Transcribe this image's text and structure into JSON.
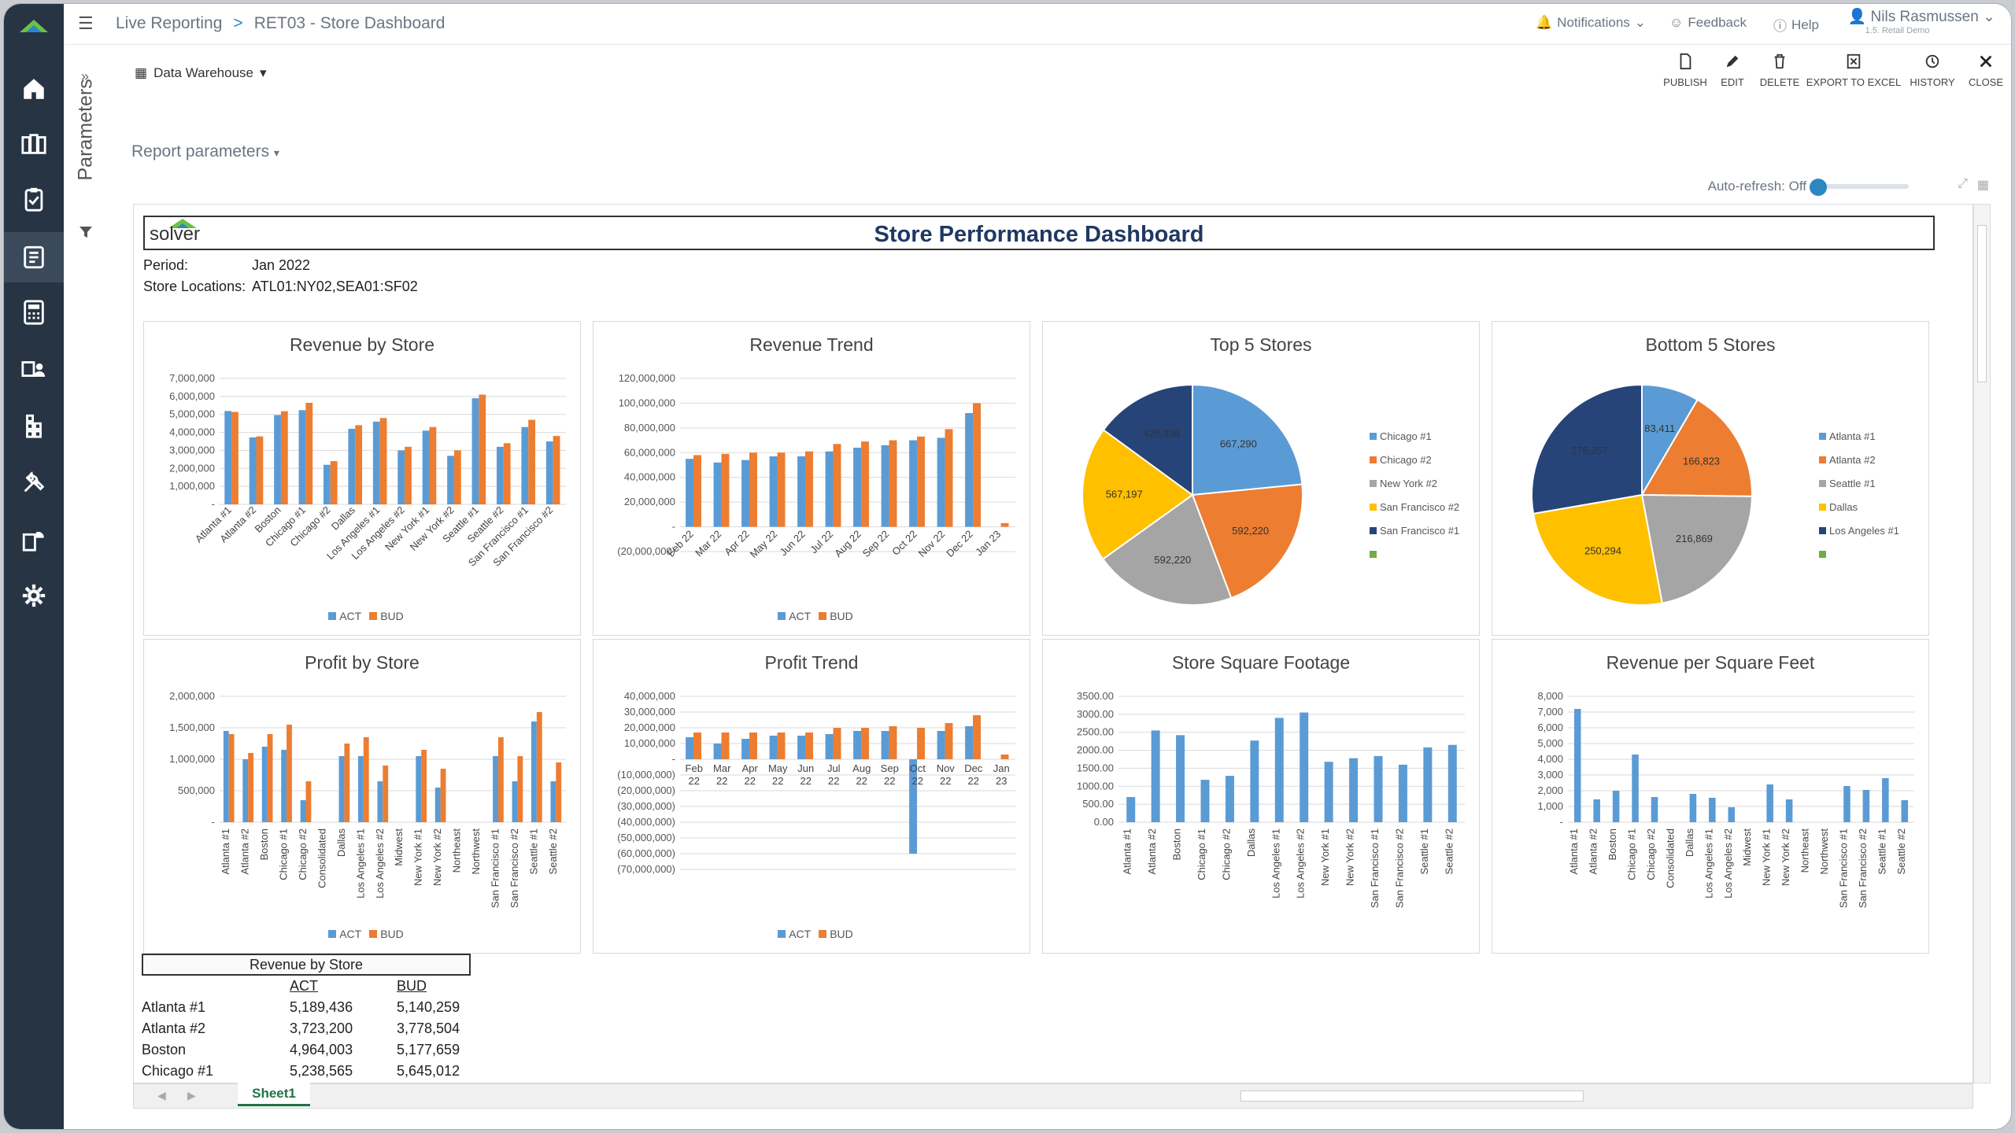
{
  "topbar": {
    "menu_icon": "hamburger-icon",
    "crumb1": "Live Reporting",
    "sep": ">",
    "crumb2": "RET03 - Store Dashboard",
    "notifications": "Notifications",
    "feedback": "Feedback",
    "help": "Help",
    "user": "Nils Rasmussen",
    "user_sub": "1.5. Retail Demo"
  },
  "sidebar": {
    "items": [
      "home-icon",
      "reports-icon",
      "clipboard-icon",
      "live-report-icon",
      "calculator-icon",
      "user-files-icon",
      "modules-icon",
      "tools-icon",
      "data-icon",
      "settings-icon"
    ]
  },
  "params": {
    "label": "Parameters",
    "report_parameters": "Report parameters"
  },
  "source": {
    "label": "Data Warehouse"
  },
  "toolbar": {
    "publish": "PUBLISH",
    "edit": "EDIT",
    "delete": "DELETE",
    "export": "EXPORT TO EXCEL",
    "history": "HISTORY",
    "close": "CLOSE"
  },
  "autorefresh": {
    "label": "Auto-refresh: Off"
  },
  "dashboard": {
    "title": "Store Performance Dashboard",
    "logo": "solver",
    "period_label": "Period:",
    "period_value": "Jan 2022",
    "locations_label": "Store Locations:",
    "locations_value": "ATL01:NY02,SEA01:SF02"
  },
  "legend": {
    "act": "ACT",
    "bud": "BUD"
  },
  "colors": {
    "act": "#5b9bd5",
    "bud": "#ed7d31",
    "gray": "#a5a5a5",
    "gold": "#ffc000",
    "navy": "#264478",
    "green": "#70ad47"
  },
  "chart_data": [
    {
      "type": "bar",
      "title": "Revenue by Store",
      "categories": [
        "Atlanta #1",
        "Atlanta #2",
        "Boston",
        "Chicago #1",
        "Chicago #2",
        "Dallas",
        "Los Angeles #1",
        "Los Angeles #2",
        "New York #1",
        "New York #2",
        "Seattle #1",
        "Seattle #2",
        "San Francisco #1",
        "San Francisco #2"
      ],
      "ylim": [
        0,
        7000000
      ],
      "yticks": [
        "7,000,000",
        "6,000,000",
        "5,000,000",
        "4,000,000",
        "3,000,000",
        "2,000,000",
        "1,000,000",
        "-"
      ],
      "series": [
        {
          "name": "ACT",
          "values": [
            5189436,
            3723200,
            4964003,
            5238565,
            2200000,
            4200000,
            4600000,
            3000000,
            4100000,
            2700000,
            5900000,
            3200000,
            4300000,
            3500000
          ]
        },
        {
          "name": "BUD",
          "values": [
            5140259,
            3778504,
            5177659,
            5645012,
            2400000,
            4400000,
            4800000,
            3200000,
            4300000,
            3000000,
            6100000,
            3400000,
            4700000,
            3800000
          ]
        }
      ]
    },
    {
      "type": "bar",
      "title": "Revenue Trend",
      "categories": [
        "Feb 22",
        "Mar 22",
        "Apr 22",
        "May 22",
        "Jun 22",
        "Jul 22",
        "Aug 22",
        "Sep 22",
        "Oct 22",
        "Nov 22",
        "Dec 22",
        "Jan 23"
      ],
      "ylim": [
        -20000000,
        120000000
      ],
      "yticks": [
        "120,000,000",
        "100,000,000",
        "80,000,000",
        "60,000,000",
        "40,000,000",
        "20,000,000",
        "-",
        "(20,000,000)"
      ],
      "series": [
        {
          "name": "ACT",
          "values": [
            55000000,
            52000000,
            54000000,
            57000000,
            57000000,
            61000000,
            64000000,
            66000000,
            70000000,
            72000000,
            92000000,
            0
          ]
        },
        {
          "name": "BUD",
          "values": [
            58000000,
            59000000,
            60000000,
            60000000,
            61000000,
            67000000,
            69000000,
            70000000,
            73000000,
            79000000,
            100000000,
            3000000
          ]
        }
      ]
    },
    {
      "type": "pie",
      "title": "Top 5 Stores",
      "labels": [
        "Chicago #1",
        "Chicago #2",
        "New York #2",
        "San Francisco #2",
        "San Francisco #1"
      ],
      "values": [
        667290,
        592220,
        592220,
        567197,
        425396
      ],
      "data_labels": [
        "667,290",
        "592,220",
        "592,220",
        "567,197",
        "425,396"
      ]
    },
    {
      "type": "pie",
      "title": "Bottom 5 Stores",
      "labels": [
        "Atlanta #1",
        "Atlanta #2",
        "Seattle #1",
        "Dallas",
        "Los Angeles #1"
      ],
      "values": [
        83411,
        166823,
        216869,
        250294,
        275257
      ],
      "data_labels": [
        "83,411",
        "166,823",
        "216,869",
        "250,294",
        "275,257"
      ]
    },
    {
      "type": "bar",
      "title": "Profit by Store",
      "categories": [
        "Atlanta #1",
        "Atlanta #2",
        "Boston",
        "Chicago #1",
        "Chicago #2",
        "Consolidated",
        "Dallas",
        "Los Angeles #1",
        "Los Angeles #2",
        "Midwest",
        "New York #1",
        "New York #2",
        "Northeast",
        "Northwest",
        "San Francisco #1",
        "San Francisco #2",
        "Seattle #1",
        "Seattle #2"
      ],
      "ylim": [
        0,
        2000000
      ],
      "yticks": [
        "2,000,000",
        "1,500,000",
        "1,000,000",
        "500,000",
        "-"
      ],
      "series": [
        {
          "name": "ACT",
          "values": [
            1450000,
            1000000,
            1200000,
            1150000,
            350000,
            0,
            1050000,
            1050000,
            650000,
            0,
            1050000,
            550000,
            0,
            0,
            1050000,
            650000,
            1600000,
            650000
          ]
        },
        {
          "name": "BUD",
          "values": [
            1400000,
            1100000,
            1400000,
            1550000,
            650000,
            0,
            1250000,
            1350000,
            900000,
            0,
            1150000,
            850000,
            0,
            0,
            1350000,
            1050000,
            1750000,
            950000
          ]
        }
      ]
    },
    {
      "type": "bar",
      "title": "Profit Trend",
      "categories": [
        "Feb 22",
        "Mar 22",
        "Apr 22",
        "May 22",
        "Jun 22",
        "Jul 22",
        "Aug 22",
        "Sep 22",
        "Oct 22",
        "Nov 22",
        "Dec 22",
        "Jan 23"
      ],
      "ylim": [
        -70000000,
        40000000
      ],
      "yticks": [
        "40,000,000",
        "30,000,000",
        "20,000,000",
        "10,000,000",
        "-",
        "(10,000,000)",
        "(20,000,000)",
        "(30,000,000)",
        "(40,000,000)",
        "(50,000,000)",
        "(60,000,000)",
        "(70,000,000)"
      ],
      "series": [
        {
          "name": "ACT",
          "values": [
            14000000,
            10000000,
            13000000,
            15000000,
            15000000,
            16000000,
            18000000,
            18000000,
            -60000000,
            18000000,
            21000000,
            0
          ]
        },
        {
          "name": "BUD",
          "values": [
            17000000,
            17000000,
            17000000,
            17000000,
            17000000,
            20000000,
            20000000,
            21000000,
            20000000,
            23000000,
            28000000,
            3000000
          ]
        }
      ]
    },
    {
      "type": "bar",
      "title": "Store Square Footage",
      "categories": [
        "Atlanta #1",
        "Atlanta #2",
        "Boston",
        "Chicago #1",
        "Chicago #2",
        "Dallas",
        "Los Angeles #1",
        "Los Angeles #2",
        "New York #1",
        "New York #2",
        "San Francisco #1",
        "San Francisco #2",
        "Seattle #1",
        "Seattle #2"
      ],
      "ylim": [
        0,
        3500
      ],
      "yticks": [
        "3500.00",
        "3000.00",
        "2500.00",
        "2000.00",
        "1500.00",
        "1000.00",
        "500.00",
        "0.00"
      ],
      "series": [
        {
          "name": "Square Footage",
          "values": [
            700,
            2550,
            2420,
            1180,
            1290,
            2270,
            2900,
            3050,
            1680,
            1780,
            1840,
            1600,
            2080,
            2150
          ]
        }
      ]
    },
    {
      "type": "bar",
      "title": "Revenue per Square Feet",
      "categories": [
        "Atlanta #1",
        "Atlanta #2",
        "Boston",
        "Chicago #1",
        "Chicago #2",
        "Consolidated",
        "Dallas",
        "Los Angeles #1",
        "Los Angeles #2",
        "Midwest",
        "New York #1",
        "New York #2",
        "Northeast",
        "Northwest",
        "San Francisco #1",
        "San Francisco #2",
        "Seattle #1",
        "Seattle #2"
      ],
      "ylim": [
        0,
        8000
      ],
      "yticks": [
        "8,000",
        "7,000",
        "6,000",
        "5,000",
        "4,000",
        "3,000",
        "2,000",
        "1,000",
        "-"
      ],
      "series": [
        {
          "name": "Revenue per Sq Ft",
          "values": [
            7200,
            1450,
            2000,
            4300,
            1600,
            0,
            1800,
            1550,
            950,
            0,
            2400,
            1450,
            0,
            0,
            2300,
            2050,
            2800,
            1400
          ]
        }
      ]
    }
  ],
  "table": {
    "title": "Revenue by Store",
    "headers": [
      "",
      "ACT",
      "BUD"
    ],
    "rows": [
      [
        "Atlanta #1",
        "5,189,436",
        "5,140,259"
      ],
      [
        "Atlanta #2",
        "3,723,200",
        "3,778,504"
      ],
      [
        "Boston",
        "4,964,003",
        "5,177,659"
      ],
      [
        "Chicago #1",
        "5,238,565",
        "5,645,012"
      ]
    ]
  },
  "sheet": {
    "tab": "Sheet1"
  }
}
